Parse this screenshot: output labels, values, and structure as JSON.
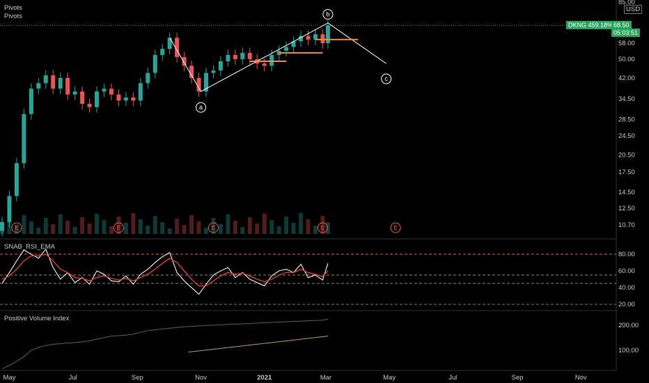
{
  "header": {
    "pivots_label_1": "Pivots",
    "pivots_label_2": "Pivots",
    "currency": "USD",
    "ticker_badge": "DKNG 459.18%",
    "price_badge": "68.50",
    "countdown": "05:03:51"
  },
  "panels": {
    "rsi_title": "SNAB_RSI_EMA",
    "pvi_title": "Positive Volume Index"
  },
  "chart_data": {
    "type": "candlestick",
    "symbol": "DKNG",
    "last_price": 68.5,
    "change_percent": "459.18%",
    "price_axis_ticks": [
      "85.00",
      "68.50",
      "58.00",
      "50.00",
      "42.00",
      "34.50",
      "28.50",
      "24.50",
      "20.50",
      "17.50",
      "14.50",
      "12.50",
      "10.70"
    ],
    "price_axis_values": [
      85,
      68.5,
      58,
      50,
      42,
      34.5,
      28.5,
      24.5,
      20.5,
      17.5,
      14.5,
      12.5,
      10.7
    ],
    "x_ticks": [
      "May",
      "Jul",
      "Sep",
      "Nov",
      "2021",
      "Mar",
      "May",
      "Jul",
      "Sep",
      "Nov"
    ],
    "x_tick_dates": [
      "2020-05",
      "2020-07",
      "2020-09",
      "2020-11",
      "2021-01",
      "2021-03",
      "2021-05",
      "2021-07",
      "2021-09",
      "2021-11"
    ],
    "close_series": [
      {
        "date": "2020-04-24",
        "value": 11
      },
      {
        "date": "2020-05-01",
        "value": 14
      },
      {
        "date": "2020-05-08",
        "value": 19
      },
      {
        "date": "2020-05-15",
        "value": 30
      },
      {
        "date": "2020-05-22",
        "value": 38
      },
      {
        "date": "2020-05-29",
        "value": 40
      },
      {
        "date": "2020-06-05",
        "value": 43
      },
      {
        "date": "2020-06-12",
        "value": 38
      },
      {
        "date": "2020-06-19",
        "value": 42
      },
      {
        "date": "2020-06-26",
        "value": 36
      },
      {
        "date": "2020-07-03",
        "value": 37
      },
      {
        "date": "2020-07-10",
        "value": 33
      },
      {
        "date": "2020-07-17",
        "value": 32
      },
      {
        "date": "2020-07-24",
        "value": 37
      },
      {
        "date": "2020-07-31",
        "value": 38
      },
      {
        "date": "2020-08-07",
        "value": 36
      },
      {
        "date": "2020-08-14",
        "value": 34
      },
      {
        "date": "2020-08-21",
        "value": 35
      },
      {
        "date": "2020-08-28",
        "value": 34
      },
      {
        "date": "2020-09-04",
        "value": 40
      },
      {
        "date": "2020-09-11",
        "value": 44
      },
      {
        "date": "2020-09-18",
        "value": 52
      },
      {
        "date": "2020-09-25",
        "value": 55
      },
      {
        "date": "2020-10-02",
        "value": 61
      },
      {
        "date": "2020-10-09",
        "value": 51
      },
      {
        "date": "2020-10-16",
        "value": 47
      },
      {
        "date": "2020-10-23",
        "value": 42
      },
      {
        "date": "2020-10-30",
        "value": 37
      },
      {
        "date": "2020-11-06",
        "value": 44
      },
      {
        "date": "2020-11-13",
        "value": 45
      },
      {
        "date": "2020-11-20",
        "value": 49
      },
      {
        "date": "2020-11-27",
        "value": 52
      },
      {
        "date": "2020-12-04",
        "value": 50
      },
      {
        "date": "2020-12-11",
        "value": 53
      },
      {
        "date": "2020-12-18",
        "value": 50
      },
      {
        "date": "2020-12-25",
        "value": 48
      },
      {
        "date": "2021-01-01",
        "value": 47
      },
      {
        "date": "2021-01-08",
        "value": 52
      },
      {
        "date": "2021-01-15",
        "value": 54
      },
      {
        "date": "2021-01-22",
        "value": 56
      },
      {
        "date": "2021-01-29",
        "value": 59
      },
      {
        "date": "2021-02-05",
        "value": 62
      },
      {
        "date": "2021-02-12",
        "value": 60
      },
      {
        "date": "2021-02-19",
        "value": 63
      },
      {
        "date": "2021-02-26",
        "value": 58
      },
      {
        "date": "2021-03-03",
        "value": 68.5
      }
    ],
    "wave_labels": [
      {
        "label": "a",
        "date": "2020-11-01",
        "value": 34.5
      },
      {
        "label": "b",
        "date": "2021-03-03",
        "value": 72
      },
      {
        "label": "c",
        "date": "2021-04-28",
        "value": 45
      }
    ],
    "earnings_markers": [
      "E",
      "E",
      "E",
      "E",
      "E"
    ],
    "rsi": {
      "name": "SNAB_RSI_EMA",
      "ticks": [
        "80.00",
        "60.00",
        "40.00",
        "20.00"
      ],
      "tick_values": [
        80,
        60,
        40,
        20
      ],
      "levels": [
        80,
        55,
        45,
        20
      ],
      "values": [
        45,
        58,
        72,
        85,
        80,
        75,
        86,
        64,
        50,
        58,
        46,
        52,
        44,
        60,
        56,
        48,
        47,
        54,
        44,
        56,
        62,
        70,
        77,
        82,
        58,
        48,
        40,
        32,
        44,
        55,
        60,
        64,
        52,
        58,
        50,
        46,
        42,
        54,
        60,
        62,
        58,
        68,
        52,
        55,
        49,
        69
      ],
      "ema": [
        50,
        54,
        62,
        72,
        78,
        78,
        80,
        72,
        62,
        58,
        52,
        51,
        48,
        52,
        54,
        51,
        49,
        51,
        48,
        52,
        56,
        62,
        69,
        75,
        70,
        60,
        50,
        42,
        42,
        48,
        54,
        58,
        56,
        57,
        54,
        50,
        47,
        50,
        55,
        58,
        58,
        62,
        58,
        56,
        53,
        60
      ]
    },
    "pvi": {
      "name": "Positive Volume Index",
      "ticks": [
        "200.00",
        "100.00"
      ],
      "tick_values": [
        200,
        100
      ],
      "values": [
        60,
        66,
        74,
        84,
        100,
        108,
        114,
        118,
        120,
        122,
        124,
        126,
        130,
        136,
        142,
        148,
        150,
        152,
        156,
        164,
        172,
        176,
        180,
        184,
        188,
        192,
        194,
        196,
        198,
        200,
        202,
        205,
        206,
        208,
        210,
        212,
        214,
        216,
        218,
        220,
        222,
        224,
        226,
        228,
        230,
        236
      ]
    }
  },
  "colors": {
    "up": "#26a69a",
    "down": "#ef5350",
    "rsi_line": "#e0e0e0",
    "rsi_ema": "#e53935",
    "pvi_line": "#2e7d32",
    "trend_line": "#c79a4d",
    "level_80": "#ef5350",
    "level_20": "#43a047",
    "pivot_bar": "#f28a3a",
    "badge": "#26a65b"
  }
}
